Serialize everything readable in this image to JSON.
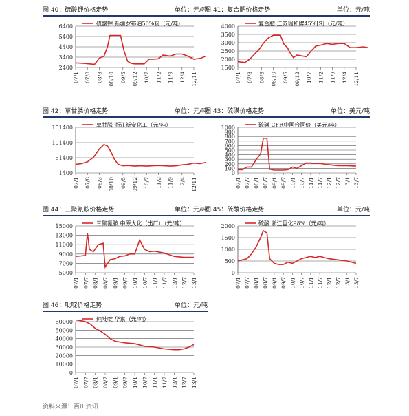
{
  "source": "资料来源：百川资讯",
  "charts": [
    {
      "fig": "图 40：硫酸钾价格走势",
      "unit": "单位：元/吨",
      "chart_data": {
        "type": "line",
        "series": [
          {
            "name": "硫酸钾 新疆罗布泊50%粉（元/吨）",
            "color": "#d62828"
          }
        ],
        "ylim": [
          2400,
          6400
        ],
        "yticks": [
          2400,
          3400,
          4400,
          5400,
          6400
        ],
        "tick_labels": [
          "6400",
          "5400",
          "4400",
          "3400",
          "2400"
        ],
        "xticks": [
          "07/1",
          "07/8",
          "08/3",
          "08/10",
          "09/5",
          "09/12",
          "10/7",
          "11/2",
          "11/9",
          "12/4",
          "12/11"
        ],
        "points": [
          [
            0,
            2850
          ],
          [
            0.6,
            2800
          ],
          [
            1.2,
            2750
          ],
          [
            1.6,
            2700
          ],
          [
            2.0,
            3300
          ],
          [
            2.4,
            3500
          ],
          [
            2.7,
            4400
          ],
          [
            2.9,
            5500
          ],
          [
            3.3,
            5500
          ],
          [
            3.8,
            5500
          ],
          [
            4.1,
            4000
          ],
          [
            4.4,
            3000
          ],
          [
            4.7,
            2800
          ],
          [
            5.0,
            2750
          ],
          [
            5.5,
            2750
          ],
          [
            5.8,
            2750
          ],
          [
            6.2,
            3200
          ],
          [
            6.6,
            3200
          ],
          [
            7.0,
            3250
          ],
          [
            7.4,
            3600
          ],
          [
            8.0,
            3500
          ],
          [
            8.5,
            3700
          ],
          [
            9.0,
            3700
          ],
          [
            9.5,
            3500
          ],
          [
            10.0,
            3200
          ],
          [
            10.6,
            3300
          ],
          [
            11.0,
            3500
          ]
        ]
      }
    },
    {
      "fig": "图 41：复合肥价格走势",
      "unit": "单位：元/吨",
      "chart_data": {
        "type": "line",
        "series": [
          {
            "name": "复合肥 江苏瑞和牌45%[S]（元/吨）",
            "color": "#d62828"
          }
        ],
        "ylim": [
          1500,
          4000
        ],
        "yticks": [
          1500,
          2000,
          2500,
          3000,
          3500,
          4000
        ],
        "tick_labels": [
          "4000",
          "3500",
          "3000",
          "2500",
          "2000",
          "1500"
        ],
        "xticks": [
          "07/1",
          "07/8",
          "08/3",
          "08/10",
          "09/5",
          "09/12",
          "10/7",
          "11/2",
          "11/9",
          "12/4",
          "12/11"
        ],
        "points": [
          [
            0,
            1850
          ],
          [
            0.6,
            1800
          ],
          [
            1.0,
            2000
          ],
          [
            1.4,
            2300
          ],
          [
            1.8,
            2600
          ],
          [
            2.2,
            3000
          ],
          [
            2.6,
            3300
          ],
          [
            3.0,
            3450
          ],
          [
            3.3,
            3450
          ],
          [
            3.6,
            3450
          ],
          [
            3.9,
            2900
          ],
          [
            4.2,
            2700
          ],
          [
            4.4,
            2400
          ],
          [
            4.7,
            2100
          ],
          [
            5.0,
            2250
          ],
          [
            5.4,
            2200
          ],
          [
            5.8,
            2150
          ],
          [
            6.2,
            2500
          ],
          [
            6.6,
            2800
          ],
          [
            7.0,
            2850
          ],
          [
            7.5,
            2950
          ],
          [
            8.0,
            2900
          ],
          [
            8.5,
            2950
          ],
          [
            9.0,
            2950
          ],
          [
            9.5,
            2700
          ],
          [
            10.0,
            2700
          ],
          [
            10.6,
            2750
          ],
          [
            11.0,
            2700
          ]
        ]
      }
    },
    {
      "fig": "图 42：草甘膦价格走势",
      "unit": "单位：元/吨",
      "chart_data": {
        "type": "line",
        "series": [
          {
            "name": "草甘膦 浙江新安化工（元/吨）",
            "color": "#d62828"
          }
        ],
        "ylim": [
          1400,
          151400
        ],
        "yticks": [
          1400,
          51400,
          101400,
          151400
        ],
        "tick_labels": [
          "151400",
          "101400",
          "51400",
          "1400"
        ],
        "xticks": [
          "07/1",
          "07/8",
          "08/3",
          "08/10",
          "09/5",
          "09/12",
          "10/7",
          "11/2",
          "11/9",
          "12/4",
          "12/11"
        ],
        "points": [
          [
            0,
            30000
          ],
          [
            0.5,
            32000
          ],
          [
            1.0,
            38000
          ],
          [
            1.5,
            52000
          ],
          [
            2.0,
            80000
          ],
          [
            2.4,
            95000
          ],
          [
            2.7,
            90000
          ],
          [
            3.0,
            70000
          ],
          [
            3.3,
            45000
          ],
          [
            3.6,
            30000
          ],
          [
            4.0,
            25000
          ],
          [
            4.5,
            26000
          ],
          [
            5.0,
            24000
          ],
          [
            5.5,
            25000
          ],
          [
            6.0,
            24000
          ],
          [
            6.5,
            25000
          ],
          [
            7.0,
            26000
          ],
          [
            7.5,
            25000
          ],
          [
            8.0,
            24000
          ],
          [
            8.5,
            25000
          ],
          [
            9.0,
            28000
          ],
          [
            9.5,
            30000
          ],
          [
            10.0,
            34000
          ],
          [
            10.5,
            32000
          ],
          [
            11.0,
            36000
          ]
        ]
      }
    },
    {
      "fig": "图 43：硫磺价格走势",
      "unit": "单位：美元/吨",
      "chart_data": {
        "type": "line",
        "series": [
          {
            "name": "硫磺 CFR中国合同价（美元/吨）",
            "color": "#d62828"
          }
        ],
        "ylim": [
          0,
          1000
        ],
        "yticks": [
          0,
          100,
          200,
          300,
          400,
          500,
          600,
          700,
          800,
          900,
          1000
        ],
        "tick_labels": [
          "1000",
          "900",
          "800",
          "700",
          "600",
          "500",
          "400",
          "300",
          "200",
          "100",
          "0"
        ],
        "xticks": [
          "07/1",
          "07/7",
          "08/1",
          "08/7",
          "09/1",
          "09/7",
          "10/1",
          "10/7",
          "11/1",
          "11/7",
          "12/1",
          "12/7",
          "13/1",
          "13/7"
        ],
        "points": [
          [
            0,
            70
          ],
          [
            0.5,
            70
          ],
          [
            1.0,
            130
          ],
          [
            1.5,
            130
          ],
          [
            2.0,
            290
          ],
          [
            2.5,
            420
          ],
          [
            2.8,
            760
          ],
          [
            3.2,
            760
          ],
          [
            3.5,
            80
          ],
          [
            4.0,
            60
          ],
          [
            4.5,
            60
          ],
          [
            5.0,
            60
          ],
          [
            5.5,
            70
          ],
          [
            6.0,
            130
          ],
          [
            6.5,
            100
          ],
          [
            7.0,
            160
          ],
          [
            7.5,
            220
          ],
          [
            8.0,
            220
          ],
          [
            8.5,
            210
          ],
          [
            9.0,
            210
          ],
          [
            10.0,
            180
          ],
          [
            11.0,
            160
          ],
          [
            12.0,
            160
          ],
          [
            13.0,
            150
          ]
        ]
      }
    },
    {
      "fig": "图 44：三聚氰胺价格走势",
      "unit": "单位：元/吨",
      "chart_data": {
        "type": "line",
        "series": [
          {
            "name": "三聚氰胺 中原大化（出厂）（元/吨）",
            "color": "#d62828"
          }
        ],
        "ylim": [
          5000,
          15000
        ],
        "yticks": [
          5000,
          7000,
          9000,
          11000,
          13000,
          15000
        ],
        "tick_labels": [
          "15000",
          "13000",
          "11000",
          "9000",
          "7000",
          "5000"
        ],
        "xticks": [
          "07/1",
          "07/7",
          "08/1",
          "08/7",
          "09/1",
          "09/7",
          "10/1",
          "10/7",
          "11/1",
          "11/7",
          "12/1",
          "12/7",
          "13/1"
        ],
        "points": [
          [
            0,
            8500
          ],
          [
            0.6,
            8600
          ],
          [
            1.0,
            8700
          ],
          [
            1.2,
            13500
          ],
          [
            1.4,
            10000
          ],
          [
            1.8,
            9500
          ],
          [
            2.3,
            11000
          ],
          [
            2.8,
            11300
          ],
          [
            3.0,
            6200
          ],
          [
            3.5,
            7800
          ],
          [
            4.0,
            8000
          ],
          [
            4.5,
            8500
          ],
          [
            5.0,
            8600
          ],
          [
            5.5,
            9000
          ],
          [
            6.0,
            9000
          ],
          [
            6.5,
            12000
          ],
          [
            7.0,
            10000
          ],
          [
            7.5,
            9500
          ],
          [
            8.0,
            9600
          ],
          [
            9.0,
            9200
          ],
          [
            10.0,
            8500
          ],
          [
            11.0,
            8300
          ],
          [
            12.0,
            8300
          ]
        ]
      }
    },
    {
      "fig": "图 45：硫酸价格走势",
      "unit": "单位：元/吨",
      "chart_data": {
        "type": "line",
        "series": [
          {
            "name": "硫酸 浙江巨化98%（元/吨）",
            "color": "#d62828"
          }
        ],
        "ylim": [
          0,
          2000
        ],
        "yticks": [
          0,
          500,
          1000,
          1500,
          2000
        ],
        "tick_labels": [
          "2000",
          "1500",
          "1000",
          "500",
          "0"
        ],
        "xticks": [
          "07/1",
          "07/7",
          "08/1",
          "08/7",
          "09/1",
          "09/7",
          "10/1",
          "10/7",
          "11/1",
          "11/7",
          "12/1",
          "12/7",
          "13/1",
          "13/7"
        ],
        "points": [
          [
            0,
            500
          ],
          [
            0.5,
            550
          ],
          [
            1.0,
            600
          ],
          [
            1.5,
            800
          ],
          [
            2.0,
            1100
          ],
          [
            2.5,
            1500
          ],
          [
            2.8,
            1800
          ],
          [
            3.2,
            1700
          ],
          [
            3.5,
            600
          ],
          [
            4.0,
            400
          ],
          [
            4.5,
            350
          ],
          [
            5.0,
            350
          ],
          [
            5.5,
            450
          ],
          [
            6.0,
            400
          ],
          [
            6.5,
            500
          ],
          [
            7.0,
            600
          ],
          [
            7.5,
            650
          ],
          [
            8.0,
            700
          ],
          [
            8.5,
            650
          ],
          [
            9.0,
            700
          ],
          [
            10.0,
            600
          ],
          [
            11.0,
            550
          ],
          [
            12.0,
            500
          ],
          [
            13.0,
            400
          ]
        ]
      }
    },
    {
      "fig": "图 46：吡啶价格走势",
      "unit": "单位：元/吨",
      "chart_data": {
        "type": "line",
        "series": [
          {
            "name": "纯吡啶 华东（元/吨）",
            "color": "#d62828"
          }
        ],
        "ylim": [
          0,
          60000
        ],
        "yticks": [
          0,
          10000,
          20000,
          30000,
          40000,
          50000,
          60000
        ],
        "tick_labels": [
          "60000",
          "50000",
          "40000",
          "30000",
          "20000",
          "10000",
          "0"
        ],
        "xticks": [
          "07/1",
          "07/7",
          "08/1",
          "08/7",
          "09/1",
          "09/7",
          "10/1",
          "10/7",
          "11/1",
          "11/7",
          "12/1",
          "12/7",
          "13/1"
        ],
        "points": [
          [
            0,
            62000
          ],
          [
            0.6,
            61000
          ],
          [
            1.0,
            60000
          ],
          [
            1.5,
            57000
          ],
          [
            2.0,
            52000
          ],
          [
            2.5,
            49000
          ],
          [
            3.0,
            45000
          ],
          [
            3.5,
            40000
          ],
          [
            4.0,
            37000
          ],
          [
            5.0,
            35000
          ],
          [
            6.0,
            34000
          ],
          [
            7.0,
            31000
          ],
          [
            8.0,
            30000
          ],
          [
            9.0,
            28000
          ],
          [
            10.0,
            27000
          ],
          [
            10.5,
            27000
          ],
          [
            11.0,
            28000
          ],
          [
            11.5,
            30000
          ],
          [
            12.0,
            33000
          ]
        ]
      }
    }
  ]
}
